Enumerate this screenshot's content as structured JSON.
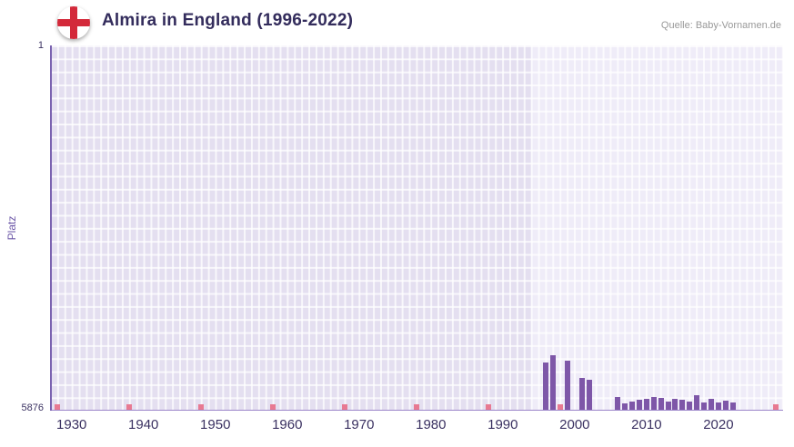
{
  "header": {
    "title": "Almira in England (1996-2022)",
    "source": "Quelle: Baby-Vornamen.de"
  },
  "chart_data": {
    "type": "bar",
    "title": "Almira in England (1996-2022)",
    "xlabel": "",
    "ylabel": "Platz",
    "y_axis": {
      "min": 1,
      "max": 5876,
      "inverted": true,
      "top_tick_label": "1",
      "bottom_tick_label": "5876"
    },
    "x_axis": {
      "start_year": 1927,
      "end_year": 2029,
      "tick_years": [
        1930,
        1940,
        1950,
        1960,
        1970,
        1980,
        1990,
        2000,
        2010,
        2020
      ]
    },
    "highlight_from_year": 1994,
    "series": [
      {
        "name": "Platz",
        "points": [
          {
            "year": 1996,
            "rank": 5105
          },
          {
            "year": 1997,
            "rank": 4980
          },
          {
            "year": 1999,
            "rank": 5075
          },
          {
            "year": 2001,
            "rank": 5355
          },
          {
            "year": 2002,
            "rank": 5385
          },
          {
            "year": 2006,
            "rank": 5650
          },
          {
            "year": 2007,
            "rank": 5755
          },
          {
            "year": 2008,
            "rank": 5735
          },
          {
            "year": 2009,
            "rank": 5700
          },
          {
            "year": 2010,
            "rank": 5680
          },
          {
            "year": 2011,
            "rank": 5660
          },
          {
            "year": 2012,
            "rank": 5670
          },
          {
            "year": 2013,
            "rank": 5730
          },
          {
            "year": 2014,
            "rank": 5685
          },
          {
            "year": 2015,
            "rank": 5700
          },
          {
            "year": 2016,
            "rank": 5730
          },
          {
            "year": 2017,
            "rank": 5620
          },
          {
            "year": 2018,
            "rank": 5750
          },
          {
            "year": 2019,
            "rank": 5690
          },
          {
            "year": 2020,
            "rank": 5750
          },
          {
            "year": 2021,
            "rank": 5710
          },
          {
            "year": 2022,
            "rank": 5740
          }
        ]
      }
    ],
    "decade_marker_years": [
      1928,
      1938,
      1948,
      1958,
      1968,
      1978,
      1988,
      1998,
      2008,
      2018,
      2028
    ],
    "colors": {
      "bar": "#7e57a8",
      "decade_marker": "#e87a92",
      "axis": "#7a62b0",
      "baseline": "#9b86c9",
      "plot_bg_before": "#e4dff0",
      "plot_bg_highlight": "#efecf8",
      "grid_line": "rgba(255,255,255,0.75)",
      "title_text": "#332c5c",
      "axis_text": "#3a3161",
      "y_axis_title_text": "#6d58a8",
      "source_text": "#999999",
      "flag_cross": "#d3293a"
    }
  }
}
